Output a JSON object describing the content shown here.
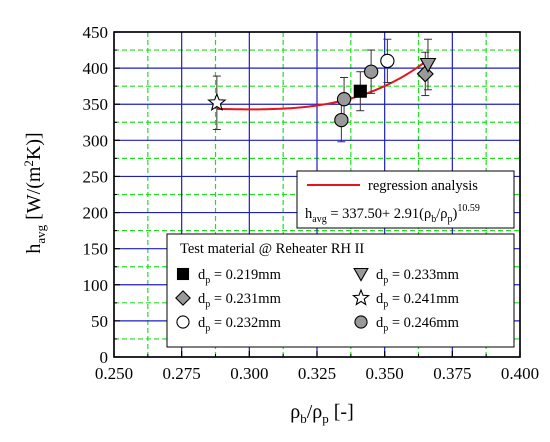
{
  "chart_data": {
    "type": "scatter",
    "xlabel": "ρb/ρp [-]",
    "ylabel": "havg [W/(m2K)]",
    "xlim": [
      0.25,
      0.4
    ],
    "ylim": [
      0,
      450
    ],
    "x_ticks": [
      "0.250",
      "0.275",
      "0.300",
      "0.325",
      "0.350",
      "0.375",
      "0.400"
    ],
    "y_ticks": [
      "0",
      "50",
      "100",
      "150",
      "200",
      "250",
      "300",
      "350",
      "400",
      "450"
    ],
    "grid": true,
    "legend_title": "Test material @ Reheater RH II",
    "series": [
      {
        "name": "dp = 0.219mm",
        "marker": "square-filled",
        "color": "#000000",
        "points": [
          {
            "x": 0.341,
            "y": 368,
            "err": 27
          }
        ]
      },
      {
        "name": "dp = 0.231mm",
        "marker": "diamond",
        "color": "#999999",
        "points": [
          {
            "x": 0.365,
            "y": 392,
            "err": 30
          }
        ]
      },
      {
        "name": "dp = 0.232mm",
        "marker": "circle-open",
        "color": "#ffffff",
        "points": [
          {
            "x": 0.351,
            "y": 410,
            "err": 30
          }
        ]
      },
      {
        "name": "dp = 0.233mm",
        "marker": "triangle-down",
        "color": "#999999",
        "points": [
          {
            "x": 0.366,
            "y": 405,
            "err": 35
          }
        ]
      },
      {
        "name": "dp = 0.241mm",
        "marker": "star-open",
        "color": "#ffffff",
        "points": [
          {
            "x": 0.288,
            "y": 352,
            "err": 37
          }
        ]
      },
      {
        "name": "dp = 0.246mm",
        "marker": "circle-filled",
        "color": "#999999",
        "points": [
          {
            "x": 0.334,
            "y": 328,
            "err": 30
          },
          {
            "x": 0.335,
            "y": 357,
            "err": 30
          },
          {
            "x": 0.345,
            "y": 395,
            "err": 30
          }
        ]
      }
    ],
    "regression": {
      "label": "regression analysis",
      "equation": "havg = 337.50+ 2.91(ρb/ρp)10.59",
      "a": 337.5,
      "b": 2.91,
      "c": 10.59,
      "x_range": [
        0.288,
        0.366
      ],
      "color": "#e8141c"
    }
  },
  "colors": {
    "major_grid": "#1f1fbd",
    "minor_grid": "#22dd22",
    "regression": "#e8141c"
  }
}
